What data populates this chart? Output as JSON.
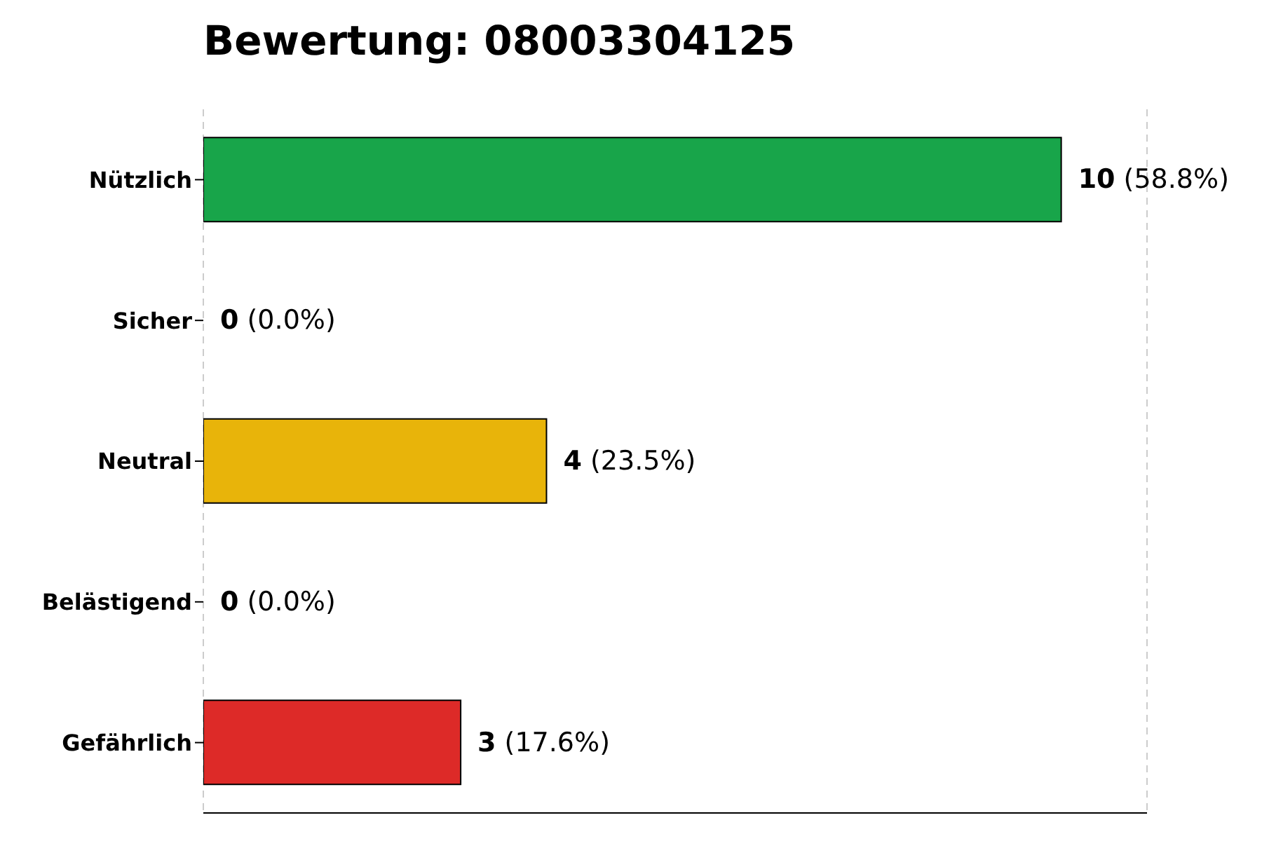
{
  "chart_data": {
    "type": "bar",
    "orientation": "horizontal",
    "title": "Bewertung: 08003304125",
    "categories": [
      "Nützlich",
      "Sicher",
      "Neutral",
      "Belästigend",
      "Gefährlich"
    ],
    "values": [
      10,
      0,
      4,
      0,
      3
    ],
    "colors": [
      "#18a54a",
      "#2e86c1",
      "#e8b40a",
      "#f07f1a",
      "#dd2a28"
    ],
    "value_labels": [
      "10 (58.8%)",
      "0 (0.0%)",
      "4 (23.5%)",
      "0 (0.0%)",
      "3 (17.6%)"
    ],
    "xlim": [
      0,
      11
    ],
    "tick_labels": "y",
    "grid": "x",
    "legend": false
  }
}
